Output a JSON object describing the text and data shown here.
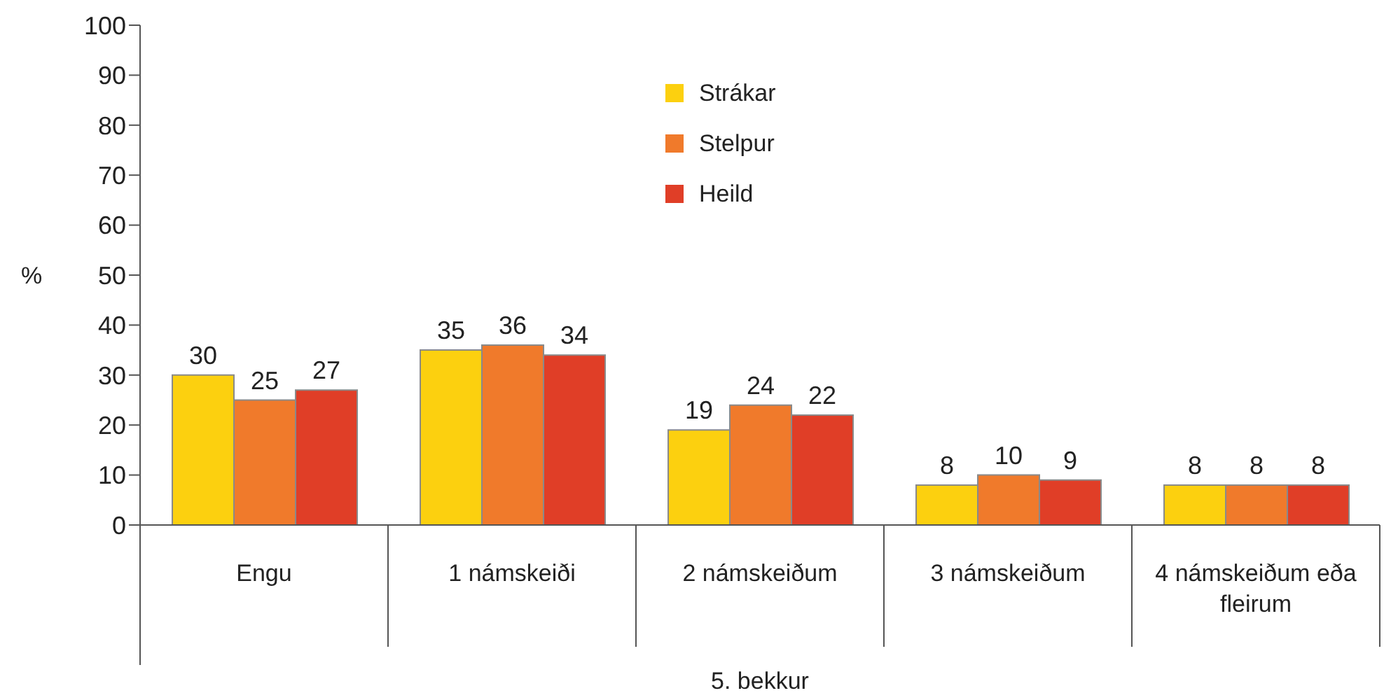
{
  "chart_data": {
    "type": "bar",
    "xlabel": "5. bekkur",
    "ylabel": "%",
    "categories": [
      "Engu",
      "1 námskeiði",
      "2 námskeiðum",
      "3 námskeiðum",
      "4 námskeiðum eða fleirum"
    ],
    "series": [
      {
        "name": "Strákar",
        "color": "#fcd00f",
        "values": [
          30,
          35,
          19,
          8,
          8
        ]
      },
      {
        "name": "Stelpur",
        "color": "#f07a2b",
        "values": [
          25,
          36,
          24,
          10,
          8
        ]
      },
      {
        "name": "Heild",
        "color": "#e03e27",
        "values": [
          27,
          34,
          22,
          9,
          8
        ]
      }
    ],
    "ylim": [
      0,
      100
    ],
    "yticks": [
      0,
      10,
      20,
      30,
      40,
      50,
      60,
      70,
      80,
      90,
      100
    ],
    "grid": false,
    "legend": "top",
    "data_labels": true
  }
}
